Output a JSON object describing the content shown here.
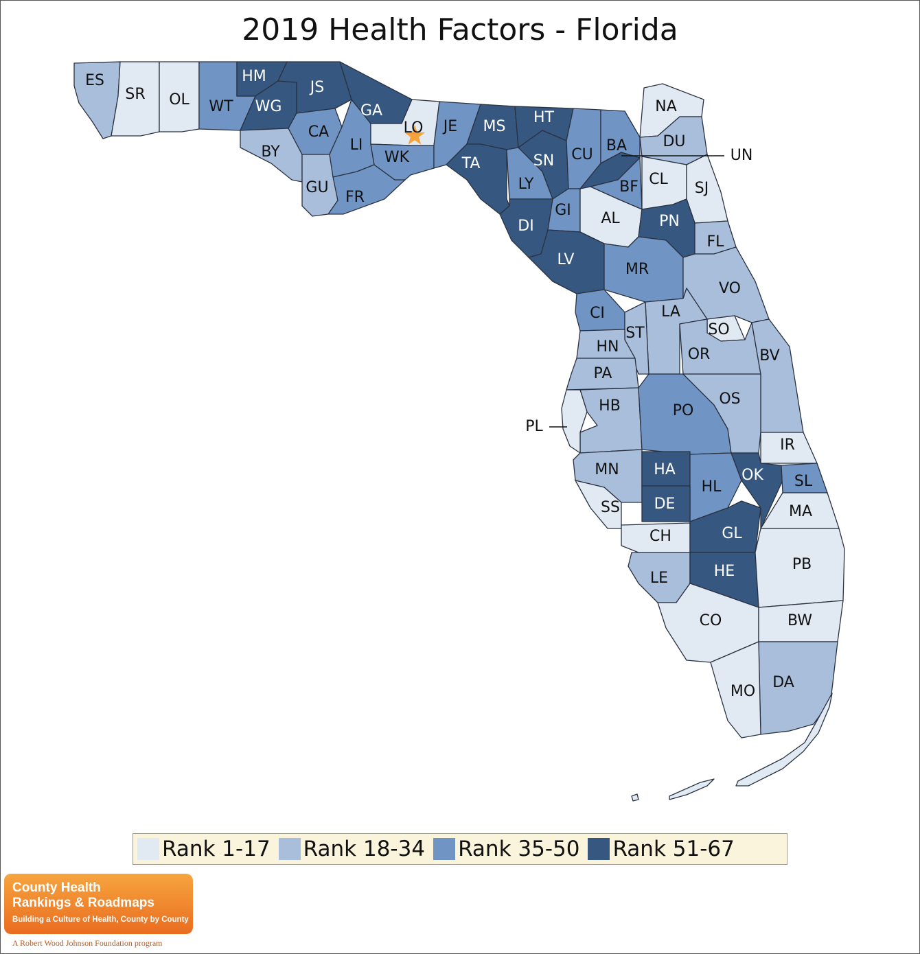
{
  "title": "2019 Health Factors - Florida",
  "colors": {
    "rank_1_17": "#e1e9f3",
    "rank_18_34": "#a9bedb",
    "rank_35_50": "#7094c3",
    "rank_51_67": "#355780",
    "marker": "#f5a23c"
  },
  "legend": [
    {
      "label": "Rank 1-17",
      "tier": 1
    },
    {
      "label": "Rank 18-34",
      "tier": 2
    },
    {
      "label": "Rank 35-50",
      "tier": 3
    },
    {
      "label": "Rank 51-67",
      "tier": 4
    }
  ],
  "counties": {
    "ES": {
      "tier": 2
    },
    "SR": {
      "tier": 1
    },
    "OL": {
      "tier": 1
    },
    "WT": {
      "tier": 3
    },
    "HM": {
      "tier": 4
    },
    "JS": {
      "tier": 4
    },
    "WG": {
      "tier": 4
    },
    "BY": {
      "tier": 2
    },
    "CA": {
      "tier": 3
    },
    "GU": {
      "tier": 2
    },
    "LI": {
      "tier": 3
    },
    "FR": {
      "tier": 3
    },
    "GA": {
      "tier": 4
    },
    "LO": {
      "tier": 1
    },
    "WK": {
      "tier": 3
    },
    "JE": {
      "tier": 3
    },
    "MS": {
      "tier": 4
    },
    "HT": {
      "tier": 4
    },
    "TA": {
      "tier": 4
    },
    "LY": {
      "tier": 3
    },
    "SN": {
      "tier": 4
    },
    "CU": {
      "tier": 3
    },
    "BA": {
      "tier": 3
    },
    "UN": {
      "tier": 4
    },
    "BF": {
      "tier": 3
    },
    "NA": {
      "tier": 1
    },
    "DU": {
      "tier": 2
    },
    "CL": {
      "tier": 1
    },
    "SJ": {
      "tier": 1
    },
    "DI": {
      "tier": 4
    },
    "GI": {
      "tier": 3
    },
    "AL": {
      "tier": 1
    },
    "PN": {
      "tier": 4
    },
    "LV": {
      "tier": 4
    },
    "MR": {
      "tier": 3
    },
    "FL": {
      "tier": 2
    },
    "VO": {
      "tier": 2
    },
    "CI": {
      "tier": 3
    },
    "LA": {
      "tier": 2
    },
    "SO": {
      "tier": 1
    },
    "ST": {
      "tier": 2
    },
    "HN": {
      "tier": 2
    },
    "OR": {
      "tier": 2
    },
    "BV": {
      "tier": 2
    },
    "PA": {
      "tier": 2
    },
    "HB": {
      "tier": 2
    },
    "PO": {
      "tier": 3
    },
    "OS": {
      "tier": 2
    },
    "PL": {
      "tier": 1
    },
    "IR": {
      "tier": 1
    },
    "MN": {
      "tier": 2
    },
    "HA": {
      "tier": 4
    },
    "HL": {
      "tier": 3
    },
    "OK": {
      "tier": 4
    },
    "SL": {
      "tier": 3
    },
    "SS": {
      "tier": 1
    },
    "DE": {
      "tier": 4
    },
    "MA": {
      "tier": 1
    },
    "CH": {
      "tier": 1
    },
    "GL": {
      "tier": 4
    },
    "LE": {
      "tier": 2
    },
    "HE": {
      "tier": 4
    },
    "PB": {
      "tier": 1
    },
    "CO": {
      "tier": 1
    },
    "BW": {
      "tier": 1
    },
    "DA": {
      "tier": 2
    },
    "MO": {
      "tier": 1
    }
  },
  "logo": {
    "line1": "County Health",
    "line2": "Rankings & Roadmaps",
    "tagline": "Building a Culture of Health, County by County",
    "sub": "A Robert Wood Johnson Foundation program"
  }
}
